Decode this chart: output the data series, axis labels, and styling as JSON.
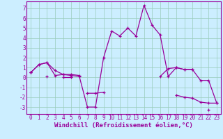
{
  "x": [
    0,
    1,
    2,
    3,
    4,
    5,
    6,
    7,
    8,
    9,
    10,
    11,
    12,
    13,
    14,
    15,
    16,
    17,
    18,
    19,
    20,
    21,
    22,
    23
  ],
  "curve_main": [
    0.5,
    1.3,
    1.5,
    0.2,
    0.3,
    0.2,
    0.1,
    -3.0,
    -3.0,
    2.0,
    4.7,
    4.2,
    5.0,
    4.2,
    7.3,
    5.3,
    4.3,
    0.1,
    1.0,
    0.8,
    0.8,
    -0.3,
    -0.3,
    -2.6
  ],
  "curve_upper": [
    0.5,
    1.3,
    1.5,
    0.7,
    0.3,
    0.3,
    0.2,
    null,
    null,
    null,
    null,
    null,
    null,
    null,
    null,
    null,
    0.1,
    0.9,
    1.0,
    0.8,
    0.8,
    null,
    null,
    null
  ],
  "curve_lower": [
    0.5,
    null,
    0.1,
    null,
    0.0,
    0.0,
    null,
    -1.6,
    -1.6,
    -1.5,
    null,
    null,
    null,
    null,
    null,
    null,
    null,
    null,
    -1.8,
    -2.0,
    -2.1,
    -2.5,
    -2.6,
    -2.6
  ],
  "curve_bottom": [
    null,
    null,
    null,
    null,
    null,
    null,
    null,
    null,
    null,
    null,
    null,
    null,
    null,
    null,
    null,
    null,
    null,
    null,
    null,
    null,
    null,
    null,
    -3.3,
    null
  ],
  "xlim": [
    -0.5,
    23.5
  ],
  "ylim": [
    -3.7,
    7.7
  ],
  "yticks": [
    -3,
    -2,
    -1,
    0,
    1,
    2,
    3,
    4,
    5,
    6,
    7
  ],
  "xticks": [
    0,
    1,
    2,
    3,
    4,
    5,
    6,
    7,
    8,
    9,
    10,
    11,
    12,
    13,
    14,
    15,
    16,
    17,
    18,
    19,
    20,
    21,
    22,
    23
  ],
  "xlabel": "Windchill (Refroidissement éolien,°C)",
  "line_color": "#990099",
  "bg_color": "#cceeff",
  "grid_color": "#99ccbb",
  "tick_fontsize": 5.5,
  "xlabel_fontsize": 6.5
}
